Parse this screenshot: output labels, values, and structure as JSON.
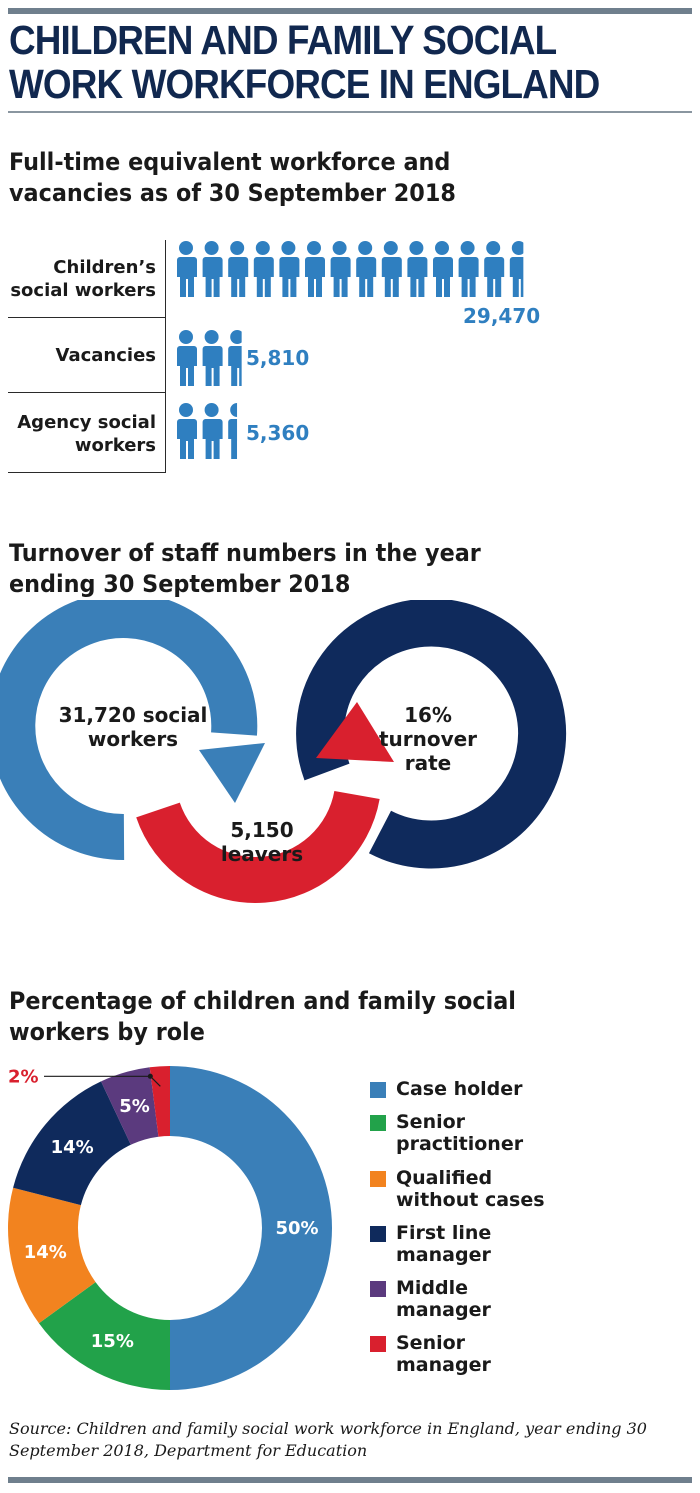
{
  "title": "CHILDREN AND FAMILY SOCIAL WORK WORKFORCE IN ENGLAND",
  "workforce": {
    "title": "Full-time equivalent workforce and vacancies as of 30 September 2018",
    "icon": "person-icon",
    "color": "#2f7fc0",
    "rows": [
      {
        "label": "Children’s social workers",
        "value": "29,470",
        "number": 29470
      },
      {
        "label": "Vacancies",
        "value": "5,810",
        "number": 5810
      },
      {
        "label": "Agency social workers",
        "value": "5,360",
        "number": 5360
      }
    ]
  },
  "turnover": {
    "title": "Turnover of staff numbers in the year ending 30 September 2018",
    "social_workers": "31,720 social workers",
    "leavers": "5,150 leavers",
    "rate": "16% turnover rate",
    "colors": {
      "social_workers": "#3a7fb8",
      "leavers": "#d9202e",
      "rate": "#0f2a5c"
    }
  },
  "chart_data": {
    "type": "pie",
    "title": "Percentage of children and family social workers by role",
    "categories": [
      "Case holder",
      "Senior practitioner",
      "Qualified without cases",
      "First line manager",
      "Middle manager",
      "Senior manager"
    ],
    "values": [
      50,
      15,
      14,
      14,
      5,
      2
    ],
    "labels": [
      "50%",
      "15%",
      "14%",
      "14%",
      "5%",
      "2%"
    ],
    "colors": [
      "#3a7fb8",
      "#22a24a",
      "#f2831f",
      "#0f2a5c",
      "#5b3a7e",
      "#d9202e"
    ],
    "legend": "right"
  },
  "source": "Source: Children and family social work workforce in England, year ending 30 September 2018, Department for Education"
}
